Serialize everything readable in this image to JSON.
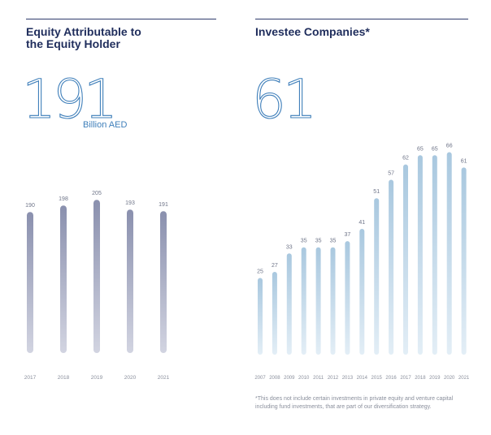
{
  "left": {
    "title_line1": "Equity Attributable to",
    "title_line2": "the Equity Holder",
    "headline_value": "191",
    "headline_unit": "Billion AED"
  },
  "right": {
    "title": "Investee Companies*",
    "headline_value": "61",
    "footnote": "*This does not include certain investments in private equity and venture capital including fund investments, that are part of our diversification strategy."
  },
  "colors": {
    "equity_bar_top": "#8a90ae",
    "equity_bar_bottom": "#d2d4e1",
    "investee_bar_top": "#a9c8df",
    "investee_bar_bottom": "#e3eef6",
    "accent": "#3f7fba",
    "title": "#1f2d5c"
  },
  "chart_data": [
    {
      "type": "bar",
      "title": "Equity Attributable to the Equity Holder",
      "ylabel": "Billion AED",
      "categories": [
        "2017",
        "2018",
        "2019",
        "2020",
        "2021"
      ],
      "values": [
        190,
        198,
        205,
        193,
        191
      ],
      "ylim": [
        0,
        205
      ]
    },
    {
      "type": "bar",
      "title": "Investee Companies*",
      "ylabel": "",
      "categories": [
        "2007",
        "2008",
        "2009",
        "2010",
        "2011",
        "2012",
        "2013",
        "2014",
        "2015",
        "2016",
        "2017",
        "2018",
        "2019",
        "2020",
        "2021"
      ],
      "values": [
        25,
        27,
        33,
        35,
        35,
        35,
        37,
        41,
        51,
        57,
        62,
        65,
        65,
        66,
        61
      ],
      "ylim": [
        0,
        66
      ]
    }
  ]
}
